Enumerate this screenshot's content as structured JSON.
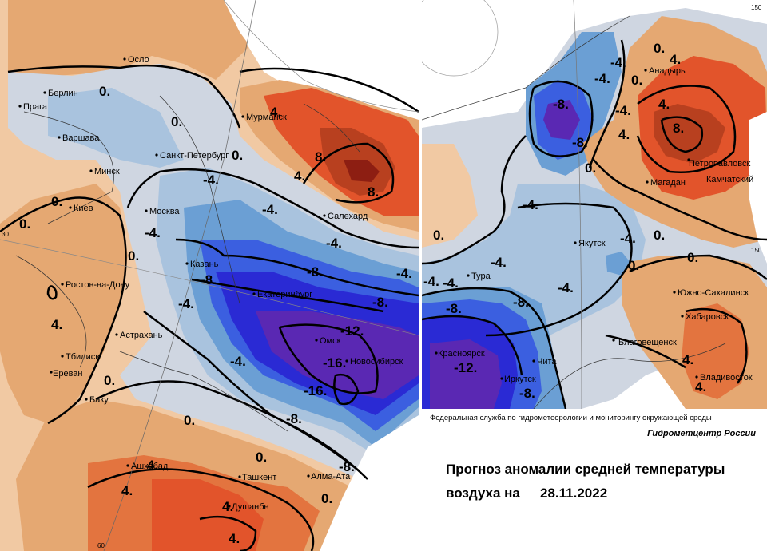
{
  "colors": {
    "warm_light": "#f1c9a3",
    "warm": "#e5a872",
    "warm_strong": "#e3743f",
    "hot": "#e2542b",
    "very_hot": "#b8401f",
    "hottest": "#8d1e12",
    "neutral": "#cfd6e1",
    "cool_light": "#a9c3de",
    "cool": "#6b9fd4",
    "cold": "#3b5fe0",
    "very_cold": "#2a2ad4",
    "coldest": "#5a28b3"
  },
  "left_map": {
    "cities": [
      "Осло",
      "Берлин",
      "Прага",
      "Варшава",
      "Минск",
      "Киев",
      "Санкт-Петербург",
      "Мурманск",
      "Москва",
      "Салехард",
      "Казань",
      "Ростов-на-Дону",
      "Екатеринбург",
      "Астрахань",
      "Тбилиси",
      "Ереван",
      "Омск",
      "Новосибирск",
      "Баку",
      "Ашхабад",
      "Ташкент",
      "Алма-Ата",
      "Душанбе"
    ],
    "contour_labels": [
      "0.",
      "0.",
      "4.",
      "8.",
      "4.",
      "0.",
      "0.",
      "-4.",
      "-4.",
      "-4.",
      "-4.",
      "8.",
      "-8.",
      "-8.",
      "0.",
      "0.",
      "4.",
      "-4.",
      "-4.",
      "-8.",
      "-12.",
      "-16.",
      "-16.",
      "-4.",
      "0.",
      "-8.",
      "0.",
      "-8.",
      "4.",
      "4.",
      "0.",
      "4.",
      "4.",
      "0."
    ],
    "degree_labels": [
      "30",
      "60"
    ]
  },
  "right_map": {
    "cities": [
      "Анадырь",
      "Петропавловск",
      "Камчатский",
      "Магадан",
      "Якутск",
      "Тура",
      "Южно-Сахалинск",
      "Хабаровск",
      "Благовещенск",
      "Красноярск",
      "Иркутск",
      "Чита",
      "Владивосток"
    ],
    "contour_labels": [
      "0.",
      "4.",
      "-4.",
      "-4.",
      "-8.",
      "-8.",
      "4.",
      "8.",
      "4.",
      "0.",
      "0.",
      "-4.",
      "-4.",
      "-4.",
      "0.",
      "0.",
      "-4.",
      "-4.",
      "0.",
      "-4.",
      "-8.",
      "-4.",
      "-8.",
      "-12.",
      "-8.",
      "4.",
      "4.",
      "0."
    ],
    "degree_labels": [
      "150",
      "150"
    ]
  },
  "footer": {
    "agency": "Федеральная служба по гидрометеорологии и мониторингу окружающей среды",
    "center": "Гидрометцентр России",
    "title_line1": "Прогноз аномалии средней температуры",
    "title_line2": "воздуха на",
    "date": "28.11.2022"
  }
}
